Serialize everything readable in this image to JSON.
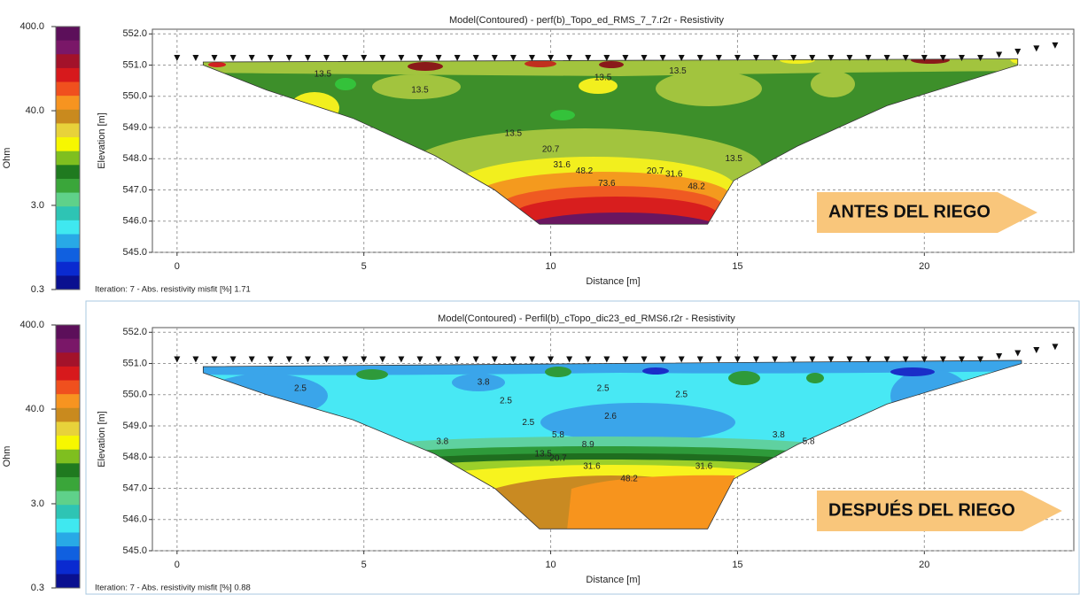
{
  "chart_data": [
    {
      "type": "contour",
      "title": "Model(Contoured) - perf(b)_Topo_ed_RMS_7_7.r2r - Resistivity",
      "x_label": "Distance [m]",
      "y_label": "Elevation [m]",
      "xlim": [
        -0.66,
        24
      ],
      "xticks": [
        0,
        5,
        10,
        15,
        20
      ],
      "ylim": [
        545,
        552.15
      ],
      "yticks": [
        {
          "value": 545,
          "label": "545.0"
        },
        {
          "value": 546,
          "label": "546.0"
        },
        {
          "value": 547,
          "label": "547.0"
        },
        {
          "value": 548,
          "label": "548.0"
        },
        {
          "value": 549,
          "label": "549.0"
        },
        {
          "value": 550,
          "label": "550.0"
        },
        {
          "value": 551,
          "label": "551.0"
        },
        {
          "value": 552,
          "label": "552.0"
        }
      ],
      "grid": true,
      "colorbar": {
        "label": "Ohm",
        "scale": "log",
        "lim": [
          0.3,
          400
        ],
        "ticks": [
          0.3,
          {
            "value": 3,
            "label": "3.0"
          },
          {
            "value": 40,
            "label": "40.0"
          },
          {
            "value": 400,
            "label": "400.0"
          }
        ],
        "colors": [
          "#5c0f5a",
          "#7a1768",
          "#a3122a",
          "#d7191c",
          "#f0501e",
          "#f79420",
          "#c98a1e",
          "#e8d23a",
          "#f7f700",
          "#7fbf1f",
          "#1f7a1f",
          "#3aa63a",
          "#5fd18a",
          "#2ec4b4",
          "#3fe8f0",
          "#28a9e6",
          "#1060e0",
          "#0a2ad0",
          "#0a1090"
        ]
      },
      "footnote": "Iteration: 7 - Abs. resistivity misfit [%] 1.71",
      "annotation": "ANTES DEL RIEGO",
      "electrodes": {
        "x": [
          0,
          0.5,
          1,
          1.5,
          2,
          2.5,
          3,
          3.5,
          4,
          4.5,
          5,
          5.5,
          6,
          6.5,
          7,
          7.5,
          8,
          8.5,
          9,
          9.5,
          10,
          10.5,
          11,
          11.5,
          12,
          12.5,
          13,
          13.5,
          14,
          14.5,
          15,
          15.5,
          16,
          16.5,
          17,
          17.5,
          18,
          18.5,
          19,
          19.5,
          20,
          20.5,
          21,
          21.5,
          22,
          22.5,
          23,
          23.5
        ],
        "y": [
          551.1,
          551.1,
          551.1,
          551.1,
          551.1,
          551.1,
          551.1,
          551.1,
          551.1,
          551.1,
          551.1,
          551.1,
          551.1,
          551.1,
          551.1,
          551.1,
          551.1,
          551.1,
          551.1,
          551.1,
          551.1,
          551.1,
          551.1,
          551.1,
          551.1,
          551.1,
          551.1,
          551.1,
          551.1,
          551.1,
          551.1,
          551.1,
          551.1,
          551.1,
          551.1,
          551.1,
          551.1,
          551.1,
          551.1,
          551.1,
          551.1,
          551.1,
          551.1,
          551.1,
          551.2,
          551.3,
          551.4,
          551.5
        ]
      },
      "section": {
        "x": [
          0.7,
          2.4,
          4.7,
          6.9,
          8.5,
          9.7,
          14.2,
          14.9,
          16.6,
          19.0,
          22.5,
          22.5,
          0.7
        ],
        "y": [
          551.0,
          550.2,
          549.3,
          548.1,
          547.0,
          545.9,
          545.9,
          547.3,
          548.4,
          549.7,
          551.0,
          551.2,
          551.1
        ]
      },
      "contour_labels": [
        {
          "value": 13.5,
          "x": 3.9,
          "y": 550.7
        },
        {
          "value": 13.5,
          "x": 6.5,
          "y": 550.2
        },
        {
          "value": 13.5,
          "x": 11.4,
          "y": 550.6
        },
        {
          "value": 13.5,
          "x": 13.4,
          "y": 550.8
        },
        {
          "value": 13.5,
          "x": 9.0,
          "y": 548.8
        },
        {
          "value": 13.5,
          "x": 14.9,
          "y": 548.0
        },
        {
          "value": 20.7,
          "x": 10.0,
          "y": 548.3
        },
        {
          "value": 31.6,
          "x": 10.3,
          "y": 547.8
        },
        {
          "value": 48.2,
          "x": 10.9,
          "y": 547.6
        },
        {
          "value": 20.7,
          "x": 12.8,
          "y": 547.6
        },
        {
          "value": 31.6,
          "x": 13.3,
          "y": 547.5
        },
        {
          "value": 48.2,
          "x": 13.9,
          "y": 547.1
        },
        {
          "value": 73.6,
          "x": 11.5,
          "y": 547.2
        }
      ]
    },
    {
      "type": "contour",
      "title": "Model(Contoured) - Perfil(b)_cTopo_dic23_ed_RMS6.r2r - Resistivity",
      "x_label": "Distance [m]",
      "y_label": "Elevation [m]",
      "xlim": [
        -0.66,
        24
      ],
      "xticks": [
        0,
        5,
        10,
        15,
        20
      ],
      "ylim": [
        545,
        552.15
      ],
      "yticks": [
        {
          "value": 545,
          "label": "545.0"
        },
        {
          "value": 546,
          "label": "546.0"
        },
        {
          "value": 547,
          "label": "547.0"
        },
        {
          "value": 548,
          "label": "548.0"
        },
        {
          "value": 549,
          "label": "549.0"
        },
        {
          "value": 550,
          "label": "550.0"
        },
        {
          "value": 551,
          "label": "551.0"
        },
        {
          "value": 552,
          "label": "552.0"
        }
      ],
      "grid": true,
      "colorbar": {
        "label": "Ohm",
        "scale": "log",
        "lim": [
          0.3,
          400
        ],
        "ticks": [
          0.3,
          {
            "value": 3,
            "label": "3.0"
          },
          {
            "value": 40,
            "label": "40.0"
          },
          {
            "value": 400,
            "label": "400.0"
          }
        ],
        "colors": [
          "#5c0f5a",
          "#7a1768",
          "#a3122a",
          "#d7191c",
          "#f0501e",
          "#f79420",
          "#c98a1e",
          "#e8d23a",
          "#f7f700",
          "#7fbf1f",
          "#1f7a1f",
          "#3aa63a",
          "#5fd18a",
          "#2ec4b4",
          "#3fe8f0",
          "#28a9e6",
          "#1060e0",
          "#0a2ad0",
          "#0a1090"
        ]
      },
      "footnote": "Iteration: 7 - Abs. resistivity misfit [%] 0.88",
      "annotation": "DESPUÉS DEL RIEGO",
      "electrodes": {
        "x": [
          0,
          0.5,
          1,
          1.5,
          2,
          2.5,
          3,
          3.5,
          4,
          4.5,
          5,
          5.5,
          6,
          6.5,
          7,
          7.5,
          8,
          8.5,
          9,
          9.5,
          10,
          10.5,
          11,
          11.5,
          12,
          12.5,
          13,
          13.5,
          14,
          14.5,
          15,
          15.5,
          16,
          16.5,
          17,
          17.5,
          18,
          18.5,
          19,
          19.5,
          20,
          20.5,
          21,
          21.5,
          22,
          22.5,
          23,
          23.5
        ],
        "y": [
          551.0,
          551.0,
          551.0,
          551.0,
          551.0,
          551.0,
          551.0,
          551.0,
          551.0,
          551.0,
          551.0,
          551.0,
          551.0,
          551.0,
          551.0,
          551.0,
          551.0,
          551.0,
          551.0,
          551.0,
          551.0,
          551.0,
          551.0,
          551.0,
          551.0,
          551.0,
          551.0,
          551.0,
          551.0,
          551.0,
          551.0,
          551.0,
          551.0,
          551.0,
          551.0,
          551.0,
          551.0,
          551.0,
          551.0,
          551.0,
          551.0,
          551.0,
          551.0,
          551.0,
          551.1,
          551.2,
          551.3,
          551.4
        ]
      },
      "section": {
        "x": [
          0.7,
          2.4,
          4.7,
          6.9,
          8.5,
          9.7,
          14.2,
          14.9,
          16.6,
          19.0,
          22.6,
          22.6,
          0.7
        ],
        "y": [
          550.7,
          550.0,
          549.2,
          548.1,
          547.0,
          545.7,
          545.7,
          547.3,
          548.4,
          549.7,
          551.0,
          551.1,
          550.9
        ]
      },
      "contour_labels": [
        {
          "value": 2.5,
          "x": 3.3,
          "y": 550.2
        },
        {
          "value": 3.8,
          "x": 8.2,
          "y": 550.4
        },
        {
          "value": 2.5,
          "x": 8.8,
          "y": 549.8
        },
        {
          "value": 2.5,
          "x": 11.4,
          "y": 550.2
        },
        {
          "value": 2.5,
          "x": 13.5,
          "y": 550.0
        },
        {
          "value": 2.5,
          "x": 9.4,
          "y": 549.1
        },
        {
          "value": 2.6,
          "x": 11.6,
          "y": 549.3
        },
        {
          "value": 3.8,
          "x": 7.1,
          "y": 548.5
        },
        {
          "value": 5.8,
          "x": 10.2,
          "y": 548.7
        },
        {
          "value": 8.9,
          "x": 11.0,
          "y": 548.4
        },
        {
          "value": 13.5,
          "x": 9.8,
          "y": 548.1
        },
        {
          "value": 20.7,
          "x": 10.2,
          "y": 547.95
        },
        {
          "value": 31.6,
          "x": 11.1,
          "y": 547.7
        },
        {
          "value": 48.2,
          "x": 12.1,
          "y": 547.3
        },
        {
          "value": 31.6,
          "x": 14.1,
          "y": 547.7
        },
        {
          "value": 3.8,
          "x": 16.1,
          "y": 548.7
        },
        {
          "value": 5.8,
          "x": 16.9,
          "y": 548.5
        }
      ]
    }
  ]
}
